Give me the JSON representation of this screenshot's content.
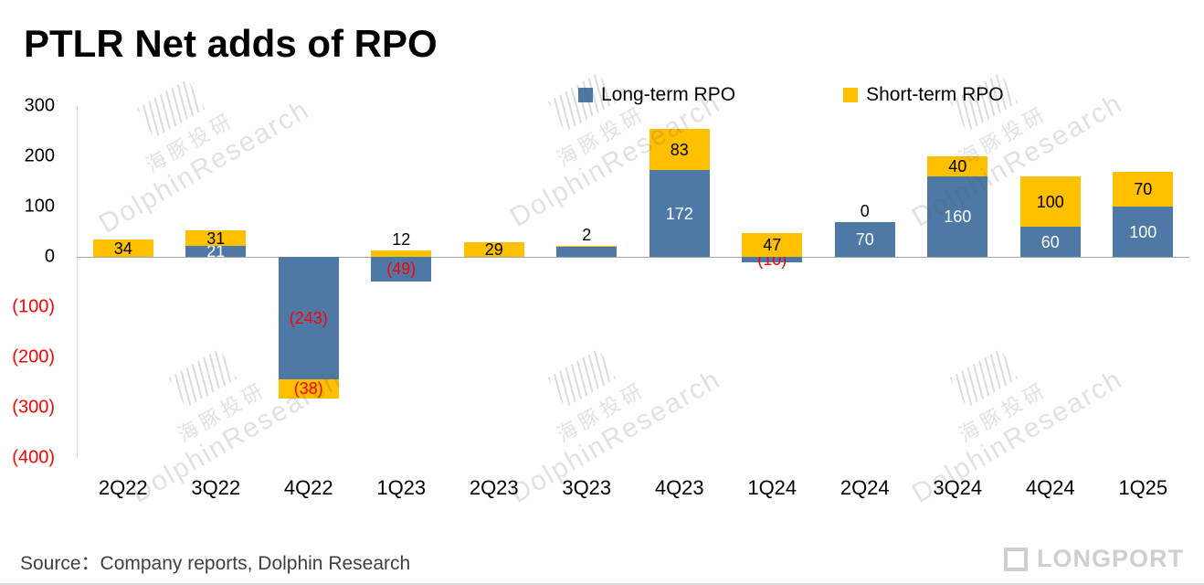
{
  "title": "PTLR Net adds of RPO",
  "legend": {
    "items": [
      {
        "label": "Long-term RPO",
        "color": "#4E79A7"
      },
      {
        "label": "Short-term RPO",
        "color": "#FFC000"
      }
    ]
  },
  "chart_data": {
    "type": "bar",
    "stacked": true,
    "title": "PTLR Net adds of RPO",
    "categories": [
      "2Q22",
      "3Q22",
      "4Q22",
      "1Q23",
      "2Q23",
      "3Q23",
      "4Q23",
      "1Q24",
      "2Q24",
      "3Q24",
      "4Q24",
      "1Q25"
    ],
    "series": [
      {
        "name": "Long-term RPO",
        "color": "#4E79A7",
        "values": [
          0,
          21,
          -243,
          -49,
          0,
          20,
          172,
          -10,
          70,
          160,
          60,
          100
        ],
        "labels": [
          "",
          "21",
          "(243)",
          "(49)",
          "",
          "",
          "172",
          "(10)",
          "70",
          "160",
          "60",
          "100"
        ]
      },
      {
        "name": "Short-term RPO",
        "color": "#FFC000",
        "values": [
          34,
          31,
          -38,
          12,
          29,
          2,
          83,
          47,
          0,
          40,
          100,
          70
        ],
        "labels": [
          "34",
          "31",
          "(38)",
          "12",
          "29",
          "2",
          "83",
          "47",
          "0",
          "40",
          "100",
          "70"
        ]
      }
    ],
    "ylim": [
      -400,
      300
    ],
    "yticks": [
      {
        "v": 300,
        "label": "300",
        "color": "#000000"
      },
      {
        "v": 200,
        "label": "200",
        "color": "#000000"
      },
      {
        "v": 100,
        "label": "100",
        "color": "#000000"
      },
      {
        "v": 0,
        "label": "0",
        "color": "#000000"
      },
      {
        "v": -100,
        "label": "(100)",
        "color": "#FF0000"
      },
      {
        "v": -200,
        "label": "(200)",
        "color": "#FF0000"
      },
      {
        "v": -300,
        "label": "(300)",
        "color": "#FF0000"
      },
      {
        "v": -400,
        "label": "(400)",
        "color": "#FF0000"
      }
    ],
    "negative_label_color": "#FF0000",
    "legend_position": "top",
    "gridlines": false
  },
  "source": "Source：Company reports, Dolphin Research",
  "watermark": {
    "cn": "海豚投研",
    "en": "DolphinResearch"
  },
  "brand": {
    "name": "LONGPORT"
  }
}
